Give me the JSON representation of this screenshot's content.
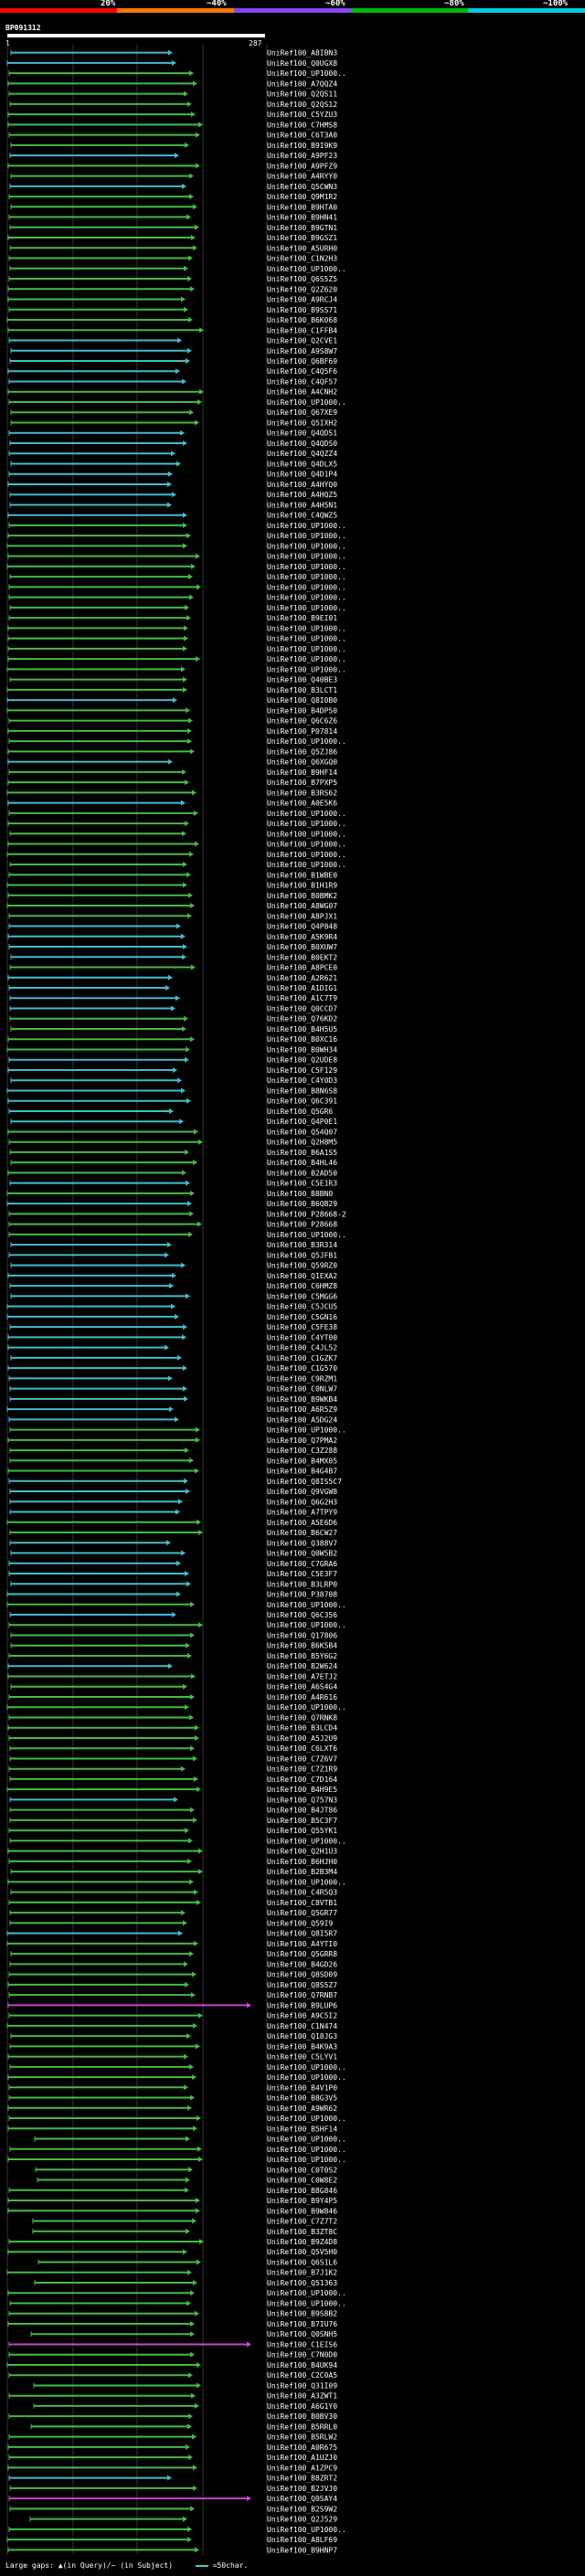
{
  "scale": {
    "labels": [
      "20%",
      "~40%",
      "~60%",
      "~80%",
      "~100%"
    ],
    "colors": [
      "#ff0000",
      "#ff7700",
      "#8844ff",
      "#00bb00",
      "#00ccdd"
    ]
  },
  "query": {
    "name": "BP091312",
    "start": "1",
    "end": "287"
  },
  "legend": {
    "gaps": "Large gaps: ▲(in Query)/~ (in Subject)",
    "swatch_label": "=50char."
  },
  "colors": {
    "teal": "#44bbcc",
    "green": "#44bb44",
    "magenta": "#cc44cc"
  },
  "hits": [
    {
      "label": "UniRef100_A8IBN3",
      "c": "t"
    },
    {
      "label": "UniRef100_Q0UGX8",
      "c": "t"
    },
    {
      "label": "UniRef100_UP1000..",
      "c": "g"
    },
    {
      "label": "UniRef100_A7QQZ4",
      "c": "g"
    },
    {
      "label": "UniRef100_Q2QS11",
      "c": "g"
    },
    {
      "label": "UniRef100_Q2QS12",
      "c": "g"
    },
    {
      "label": "UniRef100_C5YZU3",
      "c": "g"
    },
    {
      "label": "UniRef100_C7HMS8",
      "c": "g"
    },
    {
      "label": "UniRef100_C6T3A0",
      "c": "g"
    },
    {
      "label": "UniRef100_B9I9K9",
      "c": "g"
    },
    {
      "label": "UniRef100_A9PF23",
      "c": "t"
    },
    {
      "label": "UniRef100_A9PFZ9",
      "c": "g"
    },
    {
      "label": "UniRef100_A4RYY0",
      "c": "g"
    },
    {
      "label": "UniRef100_Q5CWN3",
      "c": "t"
    },
    {
      "label": "UniRef100_Q9M1R2",
      "c": "g"
    },
    {
      "label": "UniRef100_B9HTA0",
      "c": "g"
    },
    {
      "label": "UniRef100_B9HN41",
      "c": "g"
    },
    {
      "label": "UniRef100_B9GTN1",
      "c": "g"
    },
    {
      "label": "UniRef100_B9GSZ1",
      "c": "g"
    },
    {
      "label": "UniRef100_A5URH0",
      "c": "g"
    },
    {
      "label": "UniRef100_C1N2H3",
      "c": "g"
    },
    {
      "label": "UniRef100_UP1000..",
      "c": "g"
    },
    {
      "label": "UniRef100_Q6S5Z5",
      "c": "g"
    },
    {
      "label": "UniRef100_Q2Z620",
      "c": "g"
    },
    {
      "label": "UniRef100_A9RCJ4",
      "c": "g"
    },
    {
      "label": "UniRef100_B9SS71",
      "c": "g"
    },
    {
      "label": "UniRef100_B6K068",
      "c": "g"
    },
    {
      "label": "UniRef100_C1FFB4",
      "c": "g"
    },
    {
      "label": "UniRef100_Q2CVE1",
      "c": "t"
    },
    {
      "label": "UniRef100_A9S8W7",
      "c": "t"
    },
    {
      "label": "UniRef100_Q6BF69",
      "c": "t"
    },
    {
      "label": "UniRef100_C4Q5F6",
      "c": "t"
    },
    {
      "label": "UniRef100_C4QF57",
      "c": "t"
    },
    {
      "label": "UniRef100_A4CNH2",
      "c": "g"
    },
    {
      "label": "UniRef100_UP1000..",
      "c": "g"
    },
    {
      "label": "UniRef100_Q67XE9",
      "c": "g"
    },
    {
      "label": "UniRef100_Q5IXH2",
      "c": "g"
    },
    {
      "label": "UniRef100_Q4QDS1",
      "c": "t"
    },
    {
      "label": "UniRef100_Q4QDS0",
      "c": "t"
    },
    {
      "label": "UniRef100_Q4QZZ4",
      "c": "t"
    },
    {
      "label": "UniRef100_Q4DLX5",
      "c": "t"
    },
    {
      "label": "UniRef100_Q4D1P4",
      "c": "t"
    },
    {
      "label": "UniRef100_A4HYQ0",
      "c": "t"
    },
    {
      "label": "UniRef100_A4HQZ5",
      "c": "t"
    },
    {
      "label": "UniRef100_A4H5N1",
      "c": "t"
    },
    {
      "label": "UniRef100_C4QWZ5",
      "c": "t"
    },
    {
      "label": "UniRef100_UP1000..",
      "c": "g"
    },
    {
      "label": "UniRef100_UP1000..",
      "c": "g"
    },
    {
      "label": "UniRef100_UP1000..",
      "c": "g"
    },
    {
      "label": "UniRef100_UP1000..",
      "c": "g"
    },
    {
      "label": "UniRef100_UP1000..",
      "c": "g"
    },
    {
      "label": "UniRef100_UP1000..",
      "c": "g"
    },
    {
      "label": "UniRef100_UP1000..",
      "c": "g"
    },
    {
      "label": "UniRef100_UP1000..",
      "c": "g"
    },
    {
      "label": "UniRef100_UP1000..",
      "c": "g"
    },
    {
      "label": "UniRef100_B9EI01",
      "c": "g"
    },
    {
      "label": "UniRef100_UP1000..",
      "c": "g"
    },
    {
      "label": "UniRef100_UP1000..",
      "c": "g"
    },
    {
      "label": "UniRef100_UP1000..",
      "c": "g"
    },
    {
      "label": "UniRef100_UP1000..",
      "c": "g"
    },
    {
      "label": "UniRef100_UP1000..",
      "c": "g"
    },
    {
      "label": "UniRef100_Q40BE3",
      "c": "g"
    },
    {
      "label": "UniRef100_B3LCT1",
      "c": "g"
    },
    {
      "label": "UniRef100_Q8I0B0",
      "c": "t"
    },
    {
      "label": "UniRef100_B4DP50",
      "c": "g"
    },
    {
      "label": "UniRef100_Q6C6Z6",
      "c": "g"
    },
    {
      "label": "UniRef100_P07814",
      "c": "g"
    },
    {
      "label": "UniRef100_UP1000..",
      "c": "g"
    },
    {
      "label": "UniRef100_Q5ZJ86",
      "c": "g"
    },
    {
      "label": "UniRef100_Q6XGQ0",
      "c": "t"
    },
    {
      "label": "UniRef100_B9HF14",
      "c": "g"
    },
    {
      "label": "UniRef100_B7PXP5",
      "c": "g"
    },
    {
      "label": "UniRef100_B3RS62",
      "c": "g"
    },
    {
      "label": "UniRef100_A0E5K6",
      "c": "t"
    },
    {
      "label": "UniRef100_UP1000..",
      "c": "g"
    },
    {
      "label": "UniRef100_UP1000..",
      "c": "g"
    },
    {
      "label": "UniRef100_UP1000..",
      "c": "g"
    },
    {
      "label": "UniRef100_UP1000..",
      "c": "g"
    },
    {
      "label": "UniRef100_UP1000..",
      "c": "g"
    },
    {
      "label": "UniRef100_UP1000..",
      "c": "g"
    },
    {
      "label": "UniRef100_B1WBE0",
      "c": "g"
    },
    {
      "label": "UniRef100_B1H1R9",
      "c": "g"
    },
    {
      "label": "UniRef100_B0BMK2",
      "c": "g"
    },
    {
      "label": "UniRef100_A8WG07",
      "c": "g"
    },
    {
      "label": "UniRef100_A8PJX1",
      "c": "g"
    },
    {
      "label": "UniRef100_Q4P848",
      "c": "t"
    },
    {
      "label": "UniRef100_A5K9R4",
      "c": "t"
    },
    {
      "label": "UniRef100_B0XUW7",
      "c": "t"
    },
    {
      "label": "UniRef100_B0EKT2",
      "c": "t"
    },
    {
      "label": "UniRef100_A8PCE0",
      "c": "g"
    },
    {
      "label": "UniRef100_A2R621",
      "c": "t"
    },
    {
      "label": "UniRef100_A1DIG1",
      "c": "t"
    },
    {
      "label": "UniRef100_A1C7T9",
      "c": "t"
    },
    {
      "label": "UniRef100_Q0CCD7",
      "c": "t"
    },
    {
      "label": "UniRef100_Q76KD2",
      "c": "g"
    },
    {
      "label": "UniRef100_B4H5U5",
      "c": "g"
    },
    {
      "label": "UniRef100_B0XC16",
      "c": "g"
    },
    {
      "label": "UniRef100_B0WH34",
      "c": "g"
    },
    {
      "label": "UniRef100_Q2UDE8",
      "c": "t"
    },
    {
      "label": "UniRef100_C5F129",
      "c": "t"
    },
    {
      "label": "UniRef100_C4Y0D3",
      "c": "t"
    },
    {
      "label": "UniRef100_B8N6S8",
      "c": "t"
    },
    {
      "label": "UniRef100_Q6C391",
      "c": "t"
    },
    {
      "label": "UniRef100_Q5GR6",
      "c": "t"
    },
    {
      "label": "UniRef100_Q4P0E1",
      "c": "t"
    },
    {
      "label": "UniRef100_Q54Q07",
      "c": "g"
    },
    {
      "label": "UniRef100_Q2H8M5",
      "c": "g"
    },
    {
      "label": "UniRef100_B6A1S5",
      "c": "g"
    },
    {
      "label": "UniRef100_B4HL46",
      "c": "g"
    },
    {
      "label": "UniRef100_B2AD50",
      "c": "g"
    },
    {
      "label": "UniRef100_C5E1R3",
      "c": "t"
    },
    {
      "label": "UniRef100_B8BN0",
      "c": "g"
    },
    {
      "label": "UniRef100_B6QB29",
      "c": "t"
    },
    {
      "label": "UniRef100_P28668-2",
      "c": "g"
    },
    {
      "label": "UniRef100_P28668",
      "c": "g"
    },
    {
      "label": "UniRef100_UP1000..",
      "c": "g"
    },
    {
      "label": "UniRef100_B3R314",
      "c": "t"
    },
    {
      "label": "UniRef100_Q5JFB1",
      "c": "t"
    },
    {
      "label": "UniRef100_Q59RZ0",
      "c": "t"
    },
    {
      "label": "UniRef100_Q1EXA2",
      "c": "t"
    },
    {
      "label": "UniRef100_C6HMZ8",
      "c": "t"
    },
    {
      "label": "UniRef100_C5MGG6",
      "c": "t"
    },
    {
      "label": "UniRef100_C5JCU5",
      "c": "t"
    },
    {
      "label": "UniRef100_C5GN16",
      "c": "t"
    },
    {
      "label": "UniRef100_C5FE38",
      "c": "t"
    },
    {
      "label": "UniRef100_C4YT00",
      "c": "t"
    },
    {
      "label": "UniRef100_C4JL52",
      "c": "t"
    },
    {
      "label": "UniRef100_C1GZK7",
      "c": "t"
    },
    {
      "label": "UniRef100_C1G570",
      "c": "t"
    },
    {
      "label": "UniRef100_C9RZM1",
      "c": "t"
    },
    {
      "label": "UniRef100_C0NLW7",
      "c": "t"
    },
    {
      "label": "UniRef100_B9WKB4",
      "c": "t"
    },
    {
      "label": "UniRef100_A6R5Z9",
      "c": "t"
    },
    {
      "label": "UniRef100_A5DG24",
      "c": "t"
    },
    {
      "label": "UniRef100_UP1000..",
      "c": "g"
    },
    {
      "label": "UniRef100_Q7PMA2",
      "c": "g"
    },
    {
      "label": "UniRef100_C3Z288",
      "c": "g"
    },
    {
      "label": "UniRef100_B4MX05",
      "c": "g"
    },
    {
      "label": "UniRef100_B4G4B7",
      "c": "g"
    },
    {
      "label": "UniRef100_Q8IS5C7",
      "c": "t"
    },
    {
      "label": "UniRef100_Q9VGW8",
      "c": "t"
    },
    {
      "label": "UniRef100_Q6G2H3",
      "c": "t"
    },
    {
      "label": "UniRef100_A7TPY9",
      "c": "t"
    },
    {
      "label": "UniRef100_A5E6D6",
      "c": "g"
    },
    {
      "label": "UniRef100_B6CW27",
      "c": "g"
    },
    {
      "label": "UniRef100_Q388V7",
      "c": "t"
    },
    {
      "label": "UniRef100_Q0W5B2",
      "c": "t"
    },
    {
      "label": "UniRef100_C7GRA6",
      "c": "t"
    },
    {
      "label": "UniRef100_C5E3F7",
      "c": "t"
    },
    {
      "label": "UniRef100_B3LRP0",
      "c": "t"
    },
    {
      "label": "UniRef100_P38708",
      "c": "t"
    },
    {
      "label": "UniRef100_UP1000..",
      "c": "g"
    },
    {
      "label": "UniRef100_Q6C356",
      "c": "t"
    },
    {
      "label": "UniRef100_UP1000..",
      "c": "g"
    },
    {
      "label": "UniRef100_Q17806",
      "c": "g"
    },
    {
      "label": "UniRef100_B6K5B4",
      "c": "g"
    },
    {
      "label": "UniRef100_B5Y6G2",
      "c": "g"
    },
    {
      "label": "UniRef100_B2W624",
      "c": "t"
    },
    {
      "label": "UniRef100_A7ETJ2",
      "c": "g"
    },
    {
      "label": "UniRef100_A6S4G4",
      "c": "g"
    },
    {
      "label": "UniRef100_A4R616",
      "c": "g"
    },
    {
      "label": "UniRef100_UP1000..",
      "c": "g"
    },
    {
      "label": "UniRef100_Q7RNK8",
      "c": "g"
    },
    {
      "label": "UniRef100_B3LCD4",
      "c": "g"
    },
    {
      "label": "UniRef100_A5J2U9",
      "c": "g"
    },
    {
      "label": "UniRef100_C6LXT6",
      "c": "g"
    },
    {
      "label": "UniRef100_C7Z6V7",
      "c": "g"
    },
    {
      "label": "UniRef100_C7Z1R9",
      "c": "g"
    },
    {
      "label": "UniRef100_C7D164",
      "c": "g"
    },
    {
      "label": "UniRef100_B4H9E5",
      "c": "g"
    },
    {
      "label": "UniRef100_Q757N3",
      "c": "t"
    },
    {
      "label": "UniRef100_B4JT86",
      "c": "g"
    },
    {
      "label": "UniRef100_B5C3F7",
      "c": "g"
    },
    {
      "label": "UniRef100_Q55YK1",
      "c": "g"
    },
    {
      "label": "UniRef100_UP1000..",
      "c": "g"
    },
    {
      "label": "UniRef100_Q2H1U3",
      "c": "g"
    },
    {
      "label": "UniRef100_B6HJH0",
      "c": "g"
    },
    {
      "label": "UniRef100_B2B3M4",
      "c": "g"
    },
    {
      "label": "UniRef100_UP1000..",
      "c": "g"
    },
    {
      "label": "UniRef100_C4R5Q3",
      "c": "g"
    },
    {
      "label": "UniRef100_C8VTB1",
      "c": "g"
    },
    {
      "label": "UniRef100_Q5GR77",
      "c": "g"
    },
    {
      "label": "UniRef100_Q59I9",
      "c": "g"
    },
    {
      "label": "UniRef100_Q8I5R7",
      "c": "t"
    },
    {
      "label": "UniRef100_A4YTI0",
      "c": "g"
    },
    {
      "label": "UniRef100_Q5GRR8",
      "c": "g"
    },
    {
      "label": "UniRef100_B4GD26",
      "c": "g"
    },
    {
      "label": "UniRef100_Q8SD09",
      "c": "g"
    },
    {
      "label": "UniRef100_Q8S5Z7",
      "c": "g"
    },
    {
      "label": "UniRef100_Q7RNB7",
      "c": "g"
    },
    {
      "label": "UniRef100_B9LUP6",
      "c": "m"
    },
    {
      "label": "UniRef100_A9C5I2",
      "c": "g"
    },
    {
      "label": "UniRef100_C1N474",
      "c": "g"
    },
    {
      "label": "UniRef100_Q18JG3",
      "c": "g"
    },
    {
      "label": "UniRef100_B4K9A3",
      "c": "g"
    },
    {
      "label": "UniRef100_C5LYV1",
      "c": "g"
    },
    {
      "label": "UniRef100_UP1000..",
      "c": "g"
    },
    {
      "label": "UniRef100_UP1000..",
      "c": "g"
    },
    {
      "label": "UniRef100_B4V1P0",
      "c": "g"
    },
    {
      "label": "UniRef100_B8G3V5",
      "c": "g"
    },
    {
      "label": "UniRef100_A9WR62",
      "c": "g"
    },
    {
      "label": "UniRef100_UP1000..",
      "c": "g"
    },
    {
      "label": "UniRef100_B5HF14",
      "c": "g"
    },
    {
      "label": "UniRef100_UP1000..",
      "c": "g"
    },
    {
      "label": "UniRef100_UP1000..",
      "c": "g"
    },
    {
      "label": "UniRef100_UP1000..",
      "c": "g"
    },
    {
      "label": "UniRef100_C0T0S2",
      "c": "g"
    },
    {
      "label": "UniRef100_C0W8E2",
      "c": "g"
    },
    {
      "label": "UniRef100_B8G846",
      "c": "g"
    },
    {
      "label": "UniRef100_B9Y4P5",
      "c": "g"
    },
    {
      "label": "UniRef100_B9W846",
      "c": "g"
    },
    {
      "label": "UniRef100_C7Z7T2",
      "c": "g"
    },
    {
      "label": "UniRef100_B3ZT8C",
      "c": "g"
    },
    {
      "label": "UniRef100_B9Z4D8",
      "c": "g"
    },
    {
      "label": "UniRef100_Q5V5H0",
      "c": "g"
    },
    {
      "label": "UniRef100_Q6S1L6",
      "c": "g"
    },
    {
      "label": "UniRef100_B7J1K2",
      "c": "g"
    },
    {
      "label": "UniRef100_Q51363",
      "c": "g"
    },
    {
      "label": "UniRef100_UP1000..",
      "c": "g"
    },
    {
      "label": "UniRef100_UP1000..",
      "c": "g"
    },
    {
      "label": "UniRef100_B9S8B2",
      "c": "g"
    },
    {
      "label": "UniRef100_B7IU76",
      "c": "g"
    },
    {
      "label": "UniRef100_Q0SNH5",
      "c": "g"
    },
    {
      "label": "UniRef100_C1EIS6",
      "c": "m"
    },
    {
      "label": "UniRef100_C7N0D0",
      "c": "g"
    },
    {
      "label": "UniRef100_B4UK94",
      "c": "g"
    },
    {
      "label": "UniRef100_C2C0A5",
      "c": "g"
    },
    {
      "label": "UniRef100_Q31I09",
      "c": "g"
    },
    {
      "label": "UniRef100_A3ZWT1",
      "c": "g"
    },
    {
      "label": "UniRef100_A6G1Y0",
      "c": "g"
    },
    {
      "label": "UniRef100_B0BV30",
      "c": "g"
    },
    {
      "label": "UniRef100_B5RRL0",
      "c": "g"
    },
    {
      "label": "UniRef100_B5RLW2",
      "c": "g"
    },
    {
      "label": "UniRef100_A0R675",
      "c": "g"
    },
    {
      "label": "UniRef100_A1UZJ0",
      "c": "g"
    },
    {
      "label": "UniRef100_A1ZPC9",
      "c": "g"
    },
    {
      "label": "UniRef100_B8ZRT2",
      "c": "t"
    },
    {
      "label": "UniRef100_B2JVJ0",
      "c": "g"
    },
    {
      "label": "UniRef100_Q0SAY4",
      "c": "m"
    },
    {
      "label": "UniRef100_B2S9W2",
      "c": "g"
    },
    {
      "label": "UniRef100_Q2J529",
      "c": "g"
    },
    {
      "label": "UniRef100_UP1000..",
      "c": "g"
    },
    {
      "label": "UniRef100_A8LF69",
      "c": "g"
    },
    {
      "label": "UniRef100_B9HNP7",
      "c": "g"
    }
  ]
}
